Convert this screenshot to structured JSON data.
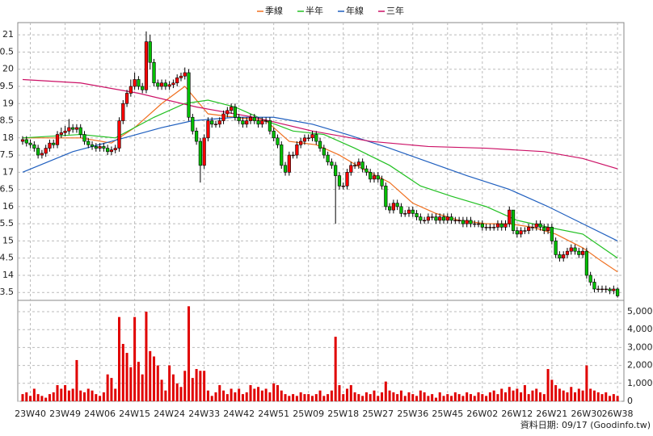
{
  "chart_data": {
    "type": "candlestick",
    "legend": "top",
    "grid": true,
    "up_color": "#ff0000",
    "down_color": "#00c000",
    "source": "資料日期: 09/17 (Goodinfo.tw)",
    "categories": [
      null,
      null,
      "23W40",
      null,
      null,
      null,
      null,
      null,
      null,
      null,
      null,
      "23W49",
      null,
      null,
      null,
      null,
      null,
      null,
      null,
      null,
      "24W06",
      null,
      null,
      null,
      null,
      null,
      null,
      null,
      null,
      "24W15",
      null,
      null,
      null,
      null,
      null,
      null,
      null,
      null,
      "24W24",
      null,
      null,
      null,
      null,
      null,
      null,
      null,
      null,
      "24W33",
      null,
      null,
      null,
      null,
      null,
      null,
      null,
      null,
      "24W42",
      null,
      null,
      null,
      null,
      null,
      null,
      null,
      null,
      "24W51",
      null,
      null,
      null,
      null,
      null,
      null,
      null,
      null,
      "25W09",
      null,
      null,
      null,
      null,
      null,
      null,
      null,
      null,
      "25W18",
      null,
      null,
      null,
      null,
      null,
      null,
      null,
      null,
      "25W27",
      null,
      null,
      null,
      null,
      null,
      null,
      null,
      null,
      "25W36",
      null,
      null,
      null,
      null,
      null,
      null,
      null,
      null,
      "25W45",
      null,
      null,
      null,
      null,
      null,
      null,
      null,
      null,
      "26W02",
      null,
      null,
      null,
      null,
      null,
      null,
      null,
      null,
      "26W12",
      null,
      null,
      null,
      null,
      null,
      null,
      null,
      null,
      "26W21",
      null,
      null,
      null,
      null,
      null,
      null,
      null,
      null,
      "26W30",
      null,
      null,
      null,
      null,
      null,
      null,
      null,
      "26W38"
    ],
    "open": [
      17.9,
      17.95,
      17.85,
      17.8,
      17.7,
      17.5,
      17.55,
      17.7,
      17.85,
      17.8,
      18.1,
      18.15,
      18.2,
      18.3,
      18.25,
      18.3,
      18.1,
      17.9,
      17.8,
      17.75,
      17.7,
      17.75,
      17.7,
      17.6,
      17.65,
      17.7,
      18.5,
      19.0,
      19.3,
      19.5,
      19.7,
      19.5,
      19.4,
      20.8,
      20.2,
      19.6,
      19.5,
      19.6,
      19.5,
      19.55,
      19.6,
      19.75,
      19.8,
      19.9,
      18.6,
      18.2,
      17.9,
      17.2,
      18.0,
      18.5,
      18.4,
      18.4,
      18.5,
      18.7,
      18.8,
      18.9,
      18.6,
      18.5,
      18.4,
      18.5,
      18.6,
      18.5,
      18.4,
      18.5,
      18.5,
      18.2,
      18.0,
      17.8,
      17.2,
      17.0,
      17.5,
      17.5,
      17.8,
      17.9,
      18.0,
      18.0,
      18.1,
      17.9,
      17.7,
      17.5,
      17.3,
      17.2,
      16.9,
      16.6,
      16.6,
      17.0,
      17.2,
      17.2,
      17.3,
      17.1,
      17.0,
      16.8,
      16.9,
      16.8,
      16.6,
      16.0,
      15.9,
      16.1,
      16.0,
      15.8,
      15.8,
      15.9,
      15.8,
      15.7,
      15.6,
      15.6,
      15.7,
      15.7,
      15.6,
      15.7,
      15.6,
      15.7,
      15.6,
      15.6,
      15.6,
      15.5,
      15.6,
      15.5,
      15.5,
      15.5,
      15.4,
      15.4,
      15.4,
      15.4,
      15.5,
      15.4,
      15.5,
      15.9,
      15.3,
      15.2,
      15.3,
      15.3,
      15.4,
      15.4,
      15.5,
      15.4,
      15.3,
      15.4,
      15.0,
      14.6,
      14.5,
      14.6,
      14.7,
      14.8,
      14.7,
      14.6,
      14.7,
      14.0,
      13.8,
      13.6,
      13.6,
      13.6,
      13.6,
      13.55,
      13.6
    ],
    "high": [
      18.05,
      18.05,
      17.95,
      17.9,
      17.8,
      17.65,
      17.8,
      17.95,
      17.95,
      18.2,
      18.3,
      18.35,
      18.55,
      18.4,
      18.4,
      18.4,
      18.2,
      18.0,
      17.9,
      17.85,
      17.85,
      17.85,
      17.8,
      17.75,
      17.8,
      18.6,
      19.1,
      19.4,
      19.7,
      19.9,
      19.8,
      19.6,
      21.1,
      21.0,
      20.3,
      19.7,
      19.7,
      19.7,
      19.65,
      19.7,
      19.85,
      19.9,
      20.05,
      20.0,
      18.7,
      18.3,
      18.0,
      18.1,
      18.6,
      18.6,
      18.5,
      18.6,
      18.8,
      18.9,
      19.0,
      19.0,
      18.7,
      18.6,
      18.6,
      18.7,
      18.7,
      18.6,
      18.6,
      18.6,
      18.6,
      18.3,
      18.1,
      17.9,
      17.3,
      17.6,
      17.6,
      17.9,
      18.0,
      18.1,
      18.1,
      18.2,
      18.2,
      18.0,
      17.8,
      17.6,
      17.4,
      17.3,
      17.0,
      16.7,
      17.1,
      17.3,
      17.3,
      17.4,
      17.4,
      17.2,
      17.1,
      17.0,
      17.0,
      16.9,
      16.7,
      16.1,
      16.2,
      16.2,
      16.1,
      15.9,
      16.0,
      16.0,
      15.9,
      15.8,
      15.7,
      15.8,
      15.8,
      15.8,
      15.8,
      15.8,
      15.8,
      15.8,
      15.7,
      15.7,
      15.7,
      15.7,
      15.7,
      15.6,
      15.6,
      15.6,
      15.5,
      15.5,
      15.5,
      15.6,
      15.6,
      15.6,
      16.0,
      15.9,
      15.4,
      15.4,
      15.4,
      15.5,
      15.5,
      15.6,
      15.6,
      15.5,
      15.5,
      15.5,
      15.1,
      14.7,
      14.7,
      14.8,
      14.9,
      14.9,
      14.8,
      14.8,
      14.8,
      14.1,
      13.9,
      13.7,
      13.7,
      13.7,
      13.65,
      13.7,
      13.65
    ],
    "low": [
      17.8,
      17.75,
      17.7,
      17.6,
      17.4,
      17.4,
      17.45,
      17.6,
      17.7,
      17.7,
      18.0,
      18.05,
      18.1,
      18.15,
      18.15,
      18.0,
      17.8,
      17.7,
      17.65,
      17.6,
      17.6,
      17.6,
      17.5,
      17.5,
      17.55,
      17.6,
      18.4,
      18.9,
      19.2,
      19.4,
      19.4,
      19.3,
      19.3,
      20.0,
      19.5,
      19.4,
      19.4,
      19.4,
      19.4,
      19.45,
      19.5,
      19.65,
      19.7,
      18.5,
      18.1,
      17.8,
      16.7,
      17.1,
      17.9,
      18.3,
      18.3,
      18.3,
      18.4,
      18.6,
      18.7,
      18.5,
      18.4,
      18.3,
      18.3,
      18.4,
      18.4,
      18.3,
      18.3,
      18.4,
      18.1,
      17.9,
      17.7,
      17.1,
      16.9,
      16.9,
      17.4,
      17.4,
      17.7,
      17.8,
      17.9,
      17.9,
      17.8,
      17.6,
      17.4,
      17.2,
      17.1,
      15.5,
      16.5,
      16.5,
      16.5,
      16.9,
      17.1,
      17.1,
      17.0,
      16.9,
      16.7,
      16.7,
      16.7,
      16.5,
      15.9,
      15.8,
      15.8,
      15.9,
      15.7,
      15.7,
      15.7,
      15.7,
      15.6,
      15.5,
      15.5,
      15.5,
      15.6,
      15.5,
      15.5,
      15.5,
      15.5,
      15.5,
      15.5,
      15.5,
      15.4,
      15.4,
      15.4,
      15.4,
      15.4,
      15.3,
      15.3,
      15.3,
      15.3,
      15.3,
      15.3,
      15.3,
      15.4,
      15.2,
      15.1,
      15.1,
      15.2,
      15.2,
      15.3,
      15.3,
      15.3,
      15.2,
      15.2,
      14.9,
      14.5,
      14.4,
      14.4,
      14.5,
      14.6,
      14.6,
      14.5,
      14.5,
      13.9,
      13.7,
      13.5,
      13.5,
      13.5,
      13.5,
      13.45,
      13.45,
      13.35
    ],
    "close": [
      17.95,
      17.85,
      17.8,
      17.7,
      17.5,
      17.55,
      17.7,
      17.85,
      17.8,
      18.1,
      18.15,
      18.2,
      18.3,
      18.25,
      18.3,
      18.1,
      17.9,
      17.8,
      17.75,
      17.7,
      17.75,
      17.7,
      17.6,
      17.65,
      17.7,
      18.5,
      19.0,
      19.3,
      19.5,
      19.7,
      19.5,
      19.4,
      20.8,
      20.2,
      19.6,
      19.5,
      19.6,
      19.5,
      19.55,
      19.6,
      19.75,
      19.8,
      19.9,
      18.6,
      18.2,
      17.9,
      17.2,
      18.0,
      18.5,
      18.4,
      18.4,
      18.5,
      18.7,
      18.8,
      18.9,
      18.6,
      18.5,
      18.4,
      18.5,
      18.6,
      18.5,
      18.4,
      18.5,
      18.5,
      18.2,
      18.0,
      17.8,
      17.2,
      17.0,
      17.5,
      17.5,
      17.8,
      17.9,
      18.0,
      18.0,
      18.1,
      17.9,
      17.7,
      17.5,
      17.3,
      17.2,
      16.9,
      16.6,
      16.6,
      17.0,
      17.2,
      17.2,
      17.3,
      17.1,
      17.0,
      16.8,
      16.9,
      16.8,
      16.6,
      16.0,
      15.9,
      16.1,
      16.0,
      15.8,
      15.8,
      15.9,
      15.8,
      15.7,
      15.6,
      15.6,
      15.7,
      15.7,
      15.6,
      15.7,
      15.6,
      15.7,
      15.6,
      15.6,
      15.6,
      15.5,
      15.6,
      15.5,
      15.5,
      15.5,
      15.4,
      15.4,
      15.4,
      15.4,
      15.5,
      15.4,
      15.5,
      15.9,
      15.3,
      15.2,
      15.3,
      15.3,
      15.4,
      15.4,
      15.5,
      15.4,
      15.3,
      15.4,
      15.0,
      14.6,
      14.5,
      14.6,
      14.7,
      14.8,
      14.7,
      14.6,
      14.7,
      14.0,
      13.8,
      13.6,
      13.6,
      13.6,
      13.6,
      13.55,
      13.6,
      13.4
    ],
    "ylim": [
      13.27,
      21.31
    ],
    "yticks": [
      21,
      {
        "value": 20.5,
        "label": "0.5"
      },
      20,
      {
        "value": 19.5,
        "label": "9.5"
      },
      19,
      {
        "value": 18.5,
        "label": "8.5"
      },
      18,
      {
        "value": 17.5,
        "label": "7.5"
      },
      17,
      {
        "value": 16.5,
        "label": "6.5"
      },
      16,
      {
        "value": 15.5,
        "label": "5.5"
      },
      15,
      {
        "value": 14.5,
        "label": "4.5"
      },
      14,
      {
        "value": 13.5,
        "label": "3.5"
      }
    ],
    "series": [
      {
        "name": "季線",
        "color": "#f07020",
        "x": [
          0,
          15,
          23,
          29,
          36,
          42,
          48,
          55,
          63,
          69,
          76,
          82,
          88,
          95,
          101,
          107,
          113,
          120,
          126,
          132,
          138,
          145,
          150,
          154
        ],
        "values": [
          18.0,
          18.0,
          17.85,
          18.3,
          19.0,
          19.5,
          18.7,
          18.6,
          18.5,
          17.9,
          17.8,
          17.5,
          17.1,
          16.7,
          16.1,
          15.8,
          15.6,
          15.5,
          15.5,
          15.4,
          15.2,
          14.8,
          14.4,
          14.1
        ]
      },
      {
        "name": "半年",
        "color": "#22c022",
        "x": [
          0,
          15,
          24,
          34,
          42,
          48,
          55,
          63,
          70,
          78,
          86,
          95,
          103,
          111,
          120,
          128,
          136,
          145,
          154
        ],
        "values": [
          18.0,
          18.1,
          18.0,
          18.6,
          19.0,
          19.1,
          18.9,
          18.5,
          18.2,
          18.1,
          17.7,
          17.2,
          16.6,
          16.3,
          16.0,
          15.6,
          15.4,
          15.2,
          14.5
        ]
      },
      {
        "name": "年線",
        "color": "#1f5fbf",
        "x": [
          0,
          13,
          23,
          36,
          44,
          55,
          65,
          75,
          84,
          95,
          105,
          115,
          126,
          136,
          145,
          154
        ],
        "values": [
          17.0,
          17.6,
          17.9,
          18.3,
          18.5,
          18.6,
          18.6,
          18.4,
          18.1,
          17.7,
          17.3,
          16.9,
          16.5,
          16.0,
          15.5,
          15.0
        ]
      },
      {
        "name": "三年",
        "color": "#cc1166",
        "x": [
          0,
          15,
          30,
          45,
          60,
          75,
          90,
          105,
          120,
          135,
          145,
          154
        ],
        "values": [
          19.7,
          19.6,
          19.3,
          18.9,
          18.6,
          18.2,
          17.9,
          17.75,
          17.7,
          17.6,
          17.4,
          17.1
        ]
      }
    ],
    "volume": {
      "color": "#e00000",
      "ylim": [
        0,
        5450
      ],
      "yticks": [
        {
          "value": 5000,
          "label": "5,000"
        },
        {
          "value": 4000,
          "label": "4,000"
        },
        {
          "value": 3000,
          "label": "3,000"
        },
        {
          "value": 2000,
          "label": "2,000"
        },
        {
          "value": 1000,
          "label": "1,000"
        },
        0
      ],
      "values": [
        400,
        500,
        300,
        700,
        400,
        300,
        200,
        400,
        500,
        900,
        700,
        900,
        600,
        700,
        2300,
        600,
        500,
        700,
        600,
        400,
        300,
        500,
        1500,
        1300,
        700,
        4700,
        3200,
        2700,
        1900,
        4700,
        2200,
        1500,
        5000,
        2800,
        2500,
        2000,
        1200,
        600,
        2000,
        1500,
        1000,
        800,
        1700,
        5300,
        1300,
        1800,
        1700,
        1700,
        600,
        300,
        500,
        900,
        600,
        400,
        700,
        500,
        700,
        400,
        500,
        900,
        700,
        800,
        600,
        700,
        500,
        1000,
        900,
        600,
        400,
        300,
        400,
        300,
        500,
        400,
        400,
        300,
        400,
        600,
        300,
        400,
        600,
        3600,
        900,
        400,
        700,
        900,
        500,
        400,
        300,
        500,
        400,
        600,
        300,
        500,
        1100,
        600,
        500,
        400,
        600,
        300,
        500,
        400,
        300,
        600,
        500,
        300,
        400,
        200,
        500,
        300,
        400,
        300,
        500,
        400,
        300,
        500,
        400,
        300,
        500,
        400,
        300,
        500,
        600,
        400,
        700,
        500,
        800,
        600,
        700,
        500,
        900,
        400,
        600,
        700,
        500,
        400,
        1800,
        1200,
        900,
        700,
        600,
        500,
        800,
        500,
        700,
        600,
        2000,
        700,
        600,
        500,
        400,
        500,
        300,
        400,
        300
      ]
    }
  }
}
